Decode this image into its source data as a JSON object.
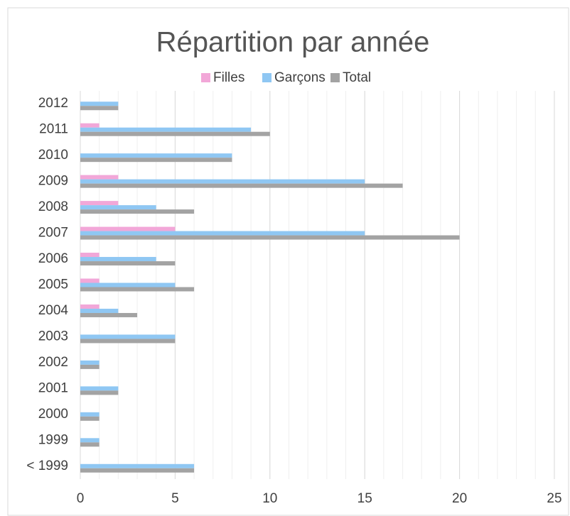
{
  "chart_data": {
    "type": "bar",
    "orientation": "horizontal",
    "title": "Répartition par année",
    "categories": [
      "2012",
      "2011",
      "2010",
      "2009",
      "2008",
      "2007",
      "2006",
      "2005",
      "2004",
      "2003",
      "2002",
      "2001",
      "2000",
      "1999",
      "< 1999"
    ],
    "series": [
      {
        "name": "Filles",
        "color": "#f2a7d8",
        "values": [
          0,
          1,
          0,
          2,
          2,
          5,
          1,
          1,
          1,
          0,
          0,
          0,
          0,
          0,
          0
        ]
      },
      {
        "name": "Garçons",
        "color": "#8fc7f3",
        "values": [
          2,
          9,
          8,
          15,
          4,
          15,
          4,
          5,
          2,
          5,
          1,
          2,
          1,
          1,
          6
        ]
      },
      {
        "name": "Total",
        "color": "#a3a3a3",
        "values": [
          2,
          10,
          8,
          17,
          6,
          20,
          5,
          6,
          3,
          5,
          1,
          2,
          1,
          1,
          6
        ]
      }
    ],
    "xlim": [
      0,
      25
    ],
    "xticks": [
      0,
      5,
      10,
      15,
      20,
      25
    ],
    "grid": true,
    "legend": "top"
  }
}
